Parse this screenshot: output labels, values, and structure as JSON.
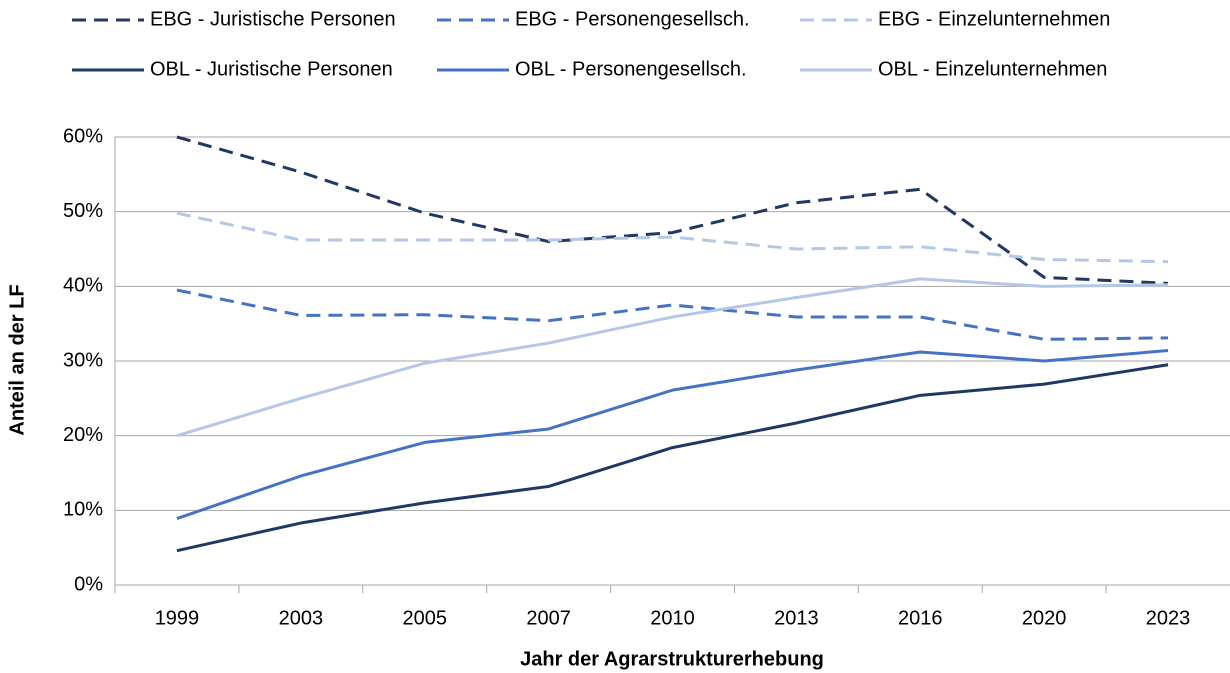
{
  "chart_data": {
    "type": "line",
    "x_label": "Jahr der Agrarstrukturerhebung",
    "y_label": "Anteil an der LF",
    "categories": [
      "1999",
      "2003",
      "2005",
      "2007",
      "2010",
      "2013",
      "2016",
      "2020",
      "2023"
    ],
    "ylim": [
      0,
      60
    ],
    "yticks": [
      {
        "value": 0,
        "label": "0%"
      },
      {
        "value": 10,
        "label": "10%"
      },
      {
        "value": 20,
        "label": "20%"
      },
      {
        "value": 30,
        "label": "30%"
      },
      {
        "value": 40,
        "label": "40%"
      },
      {
        "value": 50,
        "label": "50%"
      },
      {
        "value": 60,
        "label": "60%"
      }
    ],
    "grid": true,
    "legend": "top",
    "series": [
      {
        "name": "EBG - Juristische Personen",
        "color": "#203864",
        "dashed": true,
        "values": [
          60,
          55.3,
          49.8,
          46,
          47.2,
          51.2,
          53,
          41.2,
          40.4
        ]
      },
      {
        "name": "EBG - Personengesellsch.",
        "color": "#4472c4",
        "dashed": true,
        "values": [
          39.5,
          36.1,
          36.2,
          35.4,
          37.5,
          35.9,
          35.9,
          32.9,
          33.1
        ]
      },
      {
        "name": "EBG - Einzelunternehmen",
        "color": "#b4c7e7",
        "dashed": true,
        "values": [
          49.8,
          46.2,
          46.2,
          46.2,
          46.6,
          45,
          45.3,
          43.6,
          43.3
        ]
      },
      {
        "name": "OBL - Juristische Personen",
        "color": "#203864",
        "dashed": false,
        "values": [
          4.6,
          8.3,
          11,
          13.2,
          18.4,
          21.7,
          25.4,
          26.9,
          29.5
        ]
      },
      {
        "name": "OBL - Personengesellsch.",
        "color": "#4472c4",
        "dashed": false,
        "values": [
          8.9,
          14.6,
          19.1,
          20.9,
          26.1,
          28.8,
          31.2,
          30,
          31.4
        ]
      },
      {
        "name": "OBL - Einzelunternehmen",
        "color": "#b4c7e7",
        "dashed": false,
        "values": [
          20,
          25,
          29.7,
          32.4,
          35.9,
          38.5,
          41,
          40,
          40.2
        ]
      }
    ]
  }
}
